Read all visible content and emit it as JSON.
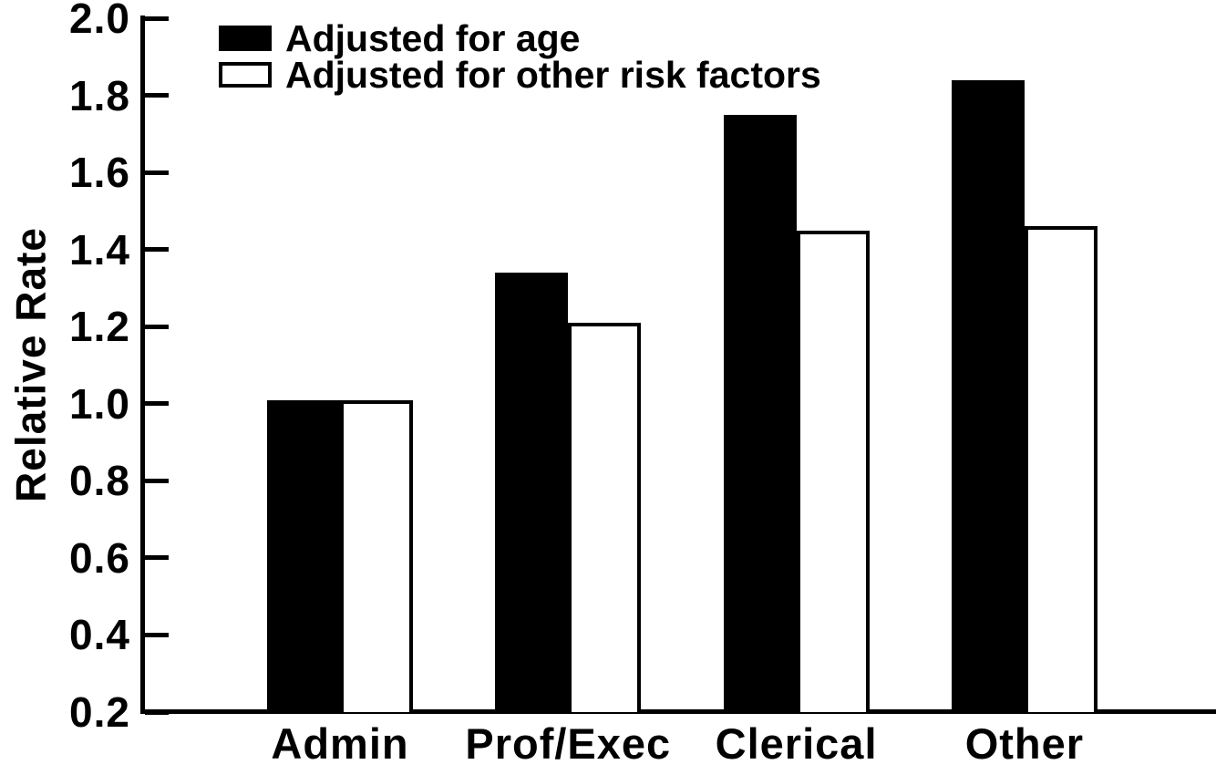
{
  "figure": {
    "background": "#ffffff",
    "foreground": "#000000"
  },
  "chart_data": {
    "type": "bar",
    "title": "",
    "xlabel": "",
    "ylabel": "Relative Rate",
    "categories": [
      "Admin",
      "Prof/Exec",
      "Clerical",
      "Other"
    ],
    "series": [
      {
        "name": "Adjusted for age",
        "fill": "#000000",
        "outline": "#000000",
        "values": [
          1.01,
          1.34,
          1.75,
          1.84
        ]
      },
      {
        "name": "Adjusted for other risk factors",
        "fill": "#ffffff",
        "outline": "#000000",
        "values": [
          1.01,
          1.21,
          1.45,
          1.46
        ]
      }
    ],
    "ylim": [
      0.2,
      2.0
    ],
    "yticks": [
      "0.2",
      "0.4",
      "0.6",
      "0.8",
      "1.0",
      "1.2",
      "1.4",
      "1.6",
      "1.8",
      "2.0"
    ],
    "grid": false,
    "legend_position": "top-left",
    "axis_color": "#000000",
    "text_color": "#000000"
  }
}
